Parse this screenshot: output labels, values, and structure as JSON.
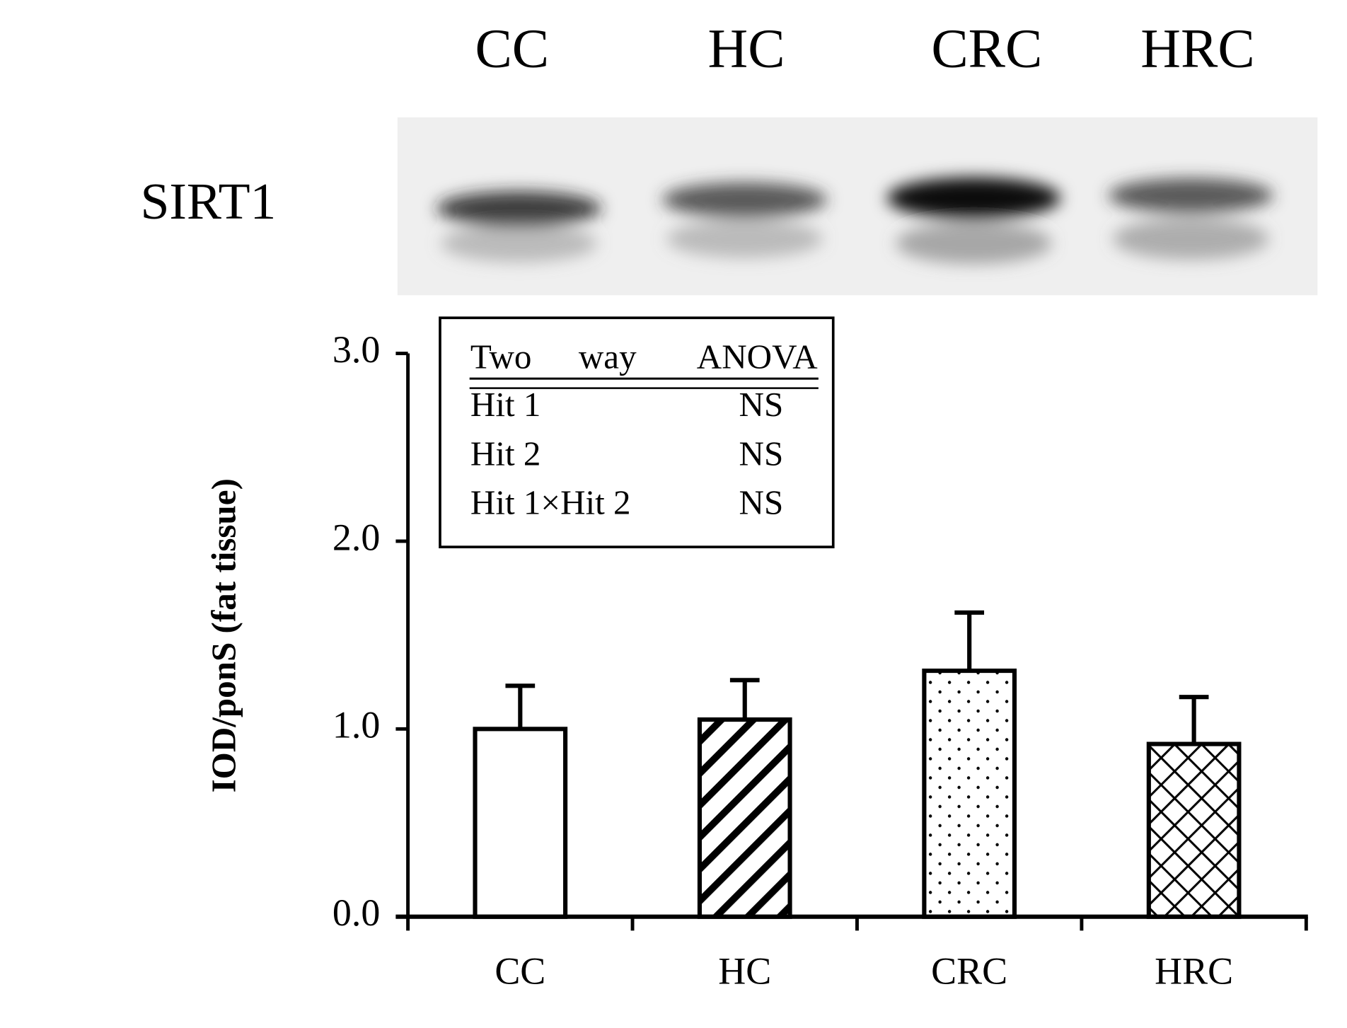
{
  "blot": {
    "label": "SIRT1",
    "lanes": [
      "CC",
      "HC",
      "CRC",
      "HRC"
    ]
  },
  "chart_data": {
    "type": "bar",
    "ylabel": "IOD/ponS (fat tissue)",
    "categories": [
      "CC",
      "HC",
      "CRC",
      "HRC"
    ],
    "values": [
      1.0,
      1.05,
      1.31,
      0.92
    ],
    "errors": [
      0.23,
      0.21,
      0.31,
      0.25
    ],
    "patterns": [
      "none",
      "diagonal",
      "dots",
      "crosshatch"
    ],
    "color": "#ffffff",
    "ylim": [
      0,
      3
    ],
    "yticks": [
      {
        "value": 0,
        "label": "0.0"
      },
      {
        "value": 1,
        "label": "1.0"
      },
      {
        "value": 2,
        "label": "2.0"
      },
      {
        "value": 3,
        "label": "3.0"
      }
    ],
    "grid": false,
    "annotation": {
      "header": [
        "Two",
        "way",
        "ANOVA"
      ],
      "rows": [
        [
          "Hit 1",
          "NS"
        ],
        [
          "Hit 2",
          "NS"
        ],
        [
          "Hit 1×Hit 2",
          "NS"
        ]
      ]
    }
  }
}
